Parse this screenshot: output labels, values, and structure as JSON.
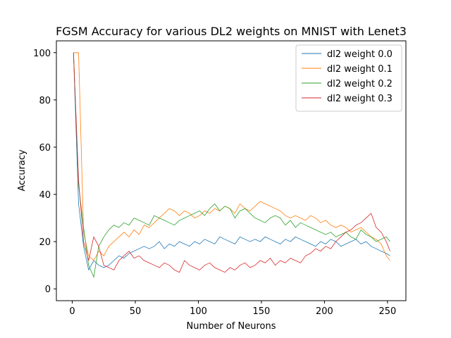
{
  "chart_data": {
    "type": "line",
    "title": "FGSM Accuracy for various DL2 weights on MNIST with Lenet3",
    "xlabel": "Number of Neurons",
    "ylabel": "Accuracy",
    "xlim": [
      -12.6,
      264.6
    ],
    "ylim": [
      -5,
      105
    ],
    "xticks": [
      0,
      50,
      100,
      150,
      200,
      250
    ],
    "yticks": [
      0,
      20,
      40,
      60,
      80,
      100
    ],
    "grid": false,
    "legend_position": "top-right",
    "x": [
      1,
      5,
      9,
      13,
      17,
      21,
      25,
      29,
      33,
      37,
      41,
      45,
      49,
      53,
      57,
      61,
      65,
      69,
      73,
      77,
      81,
      85,
      89,
      93,
      97,
      101,
      105,
      109,
      113,
      117,
      121,
      125,
      129,
      133,
      137,
      141,
      145,
      149,
      153,
      157,
      161,
      165,
      169,
      173,
      177,
      181,
      185,
      189,
      193,
      197,
      201,
      205,
      209,
      213,
      217,
      221,
      225,
      229,
      233,
      237,
      241,
      245,
      249,
      252
    ],
    "series": [
      {
        "name": "dl2 weight 0.0",
        "color": "#1f77b4",
        "values": [
          100,
          36,
          18,
          8,
          12,
          10,
          9,
          10,
          12,
          14,
          13,
          15,
          16,
          17,
          18,
          17,
          18,
          20,
          17,
          19,
          18,
          20,
          19,
          18,
          20,
          19,
          21,
          20,
          19,
          22,
          21,
          20,
          19,
          22,
          21,
          20,
          21,
          20,
          22,
          21,
          20,
          19,
          21,
          20,
          22,
          21,
          20,
          19,
          18,
          20,
          19,
          21,
          20,
          18,
          19,
          20,
          21,
          19,
          20,
          18,
          17,
          16,
          15,
          14
        ]
      },
      {
        "name": "dl2 weight 0.1",
        "color": "#ff7f0e",
        "values": [
          100,
          100,
          24,
          14,
          12,
          16,
          14,
          18,
          20,
          22,
          24,
          22,
          25,
          23,
          27,
          26,
          28,
          30,
          32,
          34,
          33,
          31,
          33,
          32,
          30,
          31,
          33,
          32,
          34,
          33,
          35,
          34,
          32,
          36,
          34,
          33,
          35,
          37,
          36,
          35,
          34,
          33,
          31,
          30,
          31,
          30,
          29,
          31,
          30,
          28,
          29,
          27,
          26,
          27,
          26,
          24,
          25,
          26,
          24,
          22,
          21,
          19,
          14,
          12
        ]
      },
      {
        "name": "dl2 weight 0.2",
        "color": "#2ca02c",
        "values": [
          100,
          44,
          26,
          10,
          5,
          18,
          22,
          25,
          27,
          26,
          28,
          27,
          30,
          29,
          28,
          27,
          31,
          30,
          29,
          28,
          27,
          29,
          30,
          31,
          32,
          33,
          31,
          34,
          36,
          33,
          35,
          34,
          30,
          33,
          34,
          32,
          30,
          29,
          28,
          30,
          31,
          30,
          27,
          29,
          26,
          28,
          27,
          26,
          25,
          24,
          23,
          24,
          22,
          23,
          24,
          22,
          21,
          25,
          23,
          22,
          20,
          21,
          22,
          20
        ]
      },
      {
        "name": "dl2 weight 0.3",
        "color": "#d62728",
        "values": [
          100,
          46,
          20,
          12,
          22,
          18,
          10,
          9,
          8,
          12,
          14,
          16,
          13,
          14,
          12,
          11,
          10,
          9,
          11,
          10,
          8,
          7,
          12,
          10,
          9,
          8,
          10,
          11,
          9,
          8,
          7,
          9,
          8,
          10,
          11,
          9,
          10,
          12,
          11,
          13,
          10,
          12,
          11,
          13,
          12,
          11,
          14,
          15,
          17,
          16,
          18,
          17,
          20,
          22,
          24,
          25,
          27,
          28,
          30,
          32,
          26,
          24,
          20,
          16
        ]
      }
    ]
  }
}
